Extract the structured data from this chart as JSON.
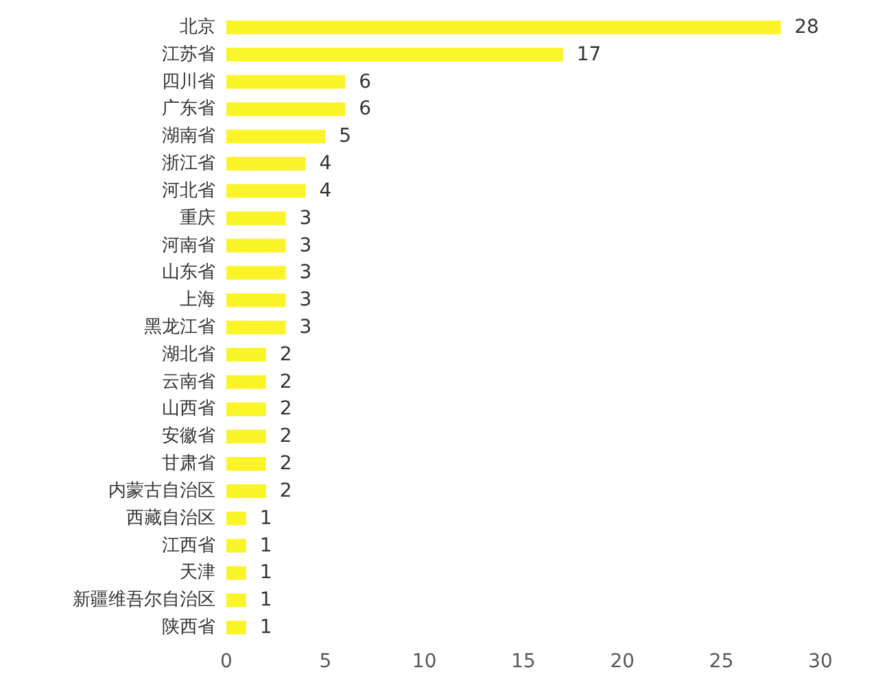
{
  "chart_data": {
    "type": "bar",
    "orientation": "horizontal",
    "categories": [
      "北京",
      "江苏省",
      "四川省",
      "广东省",
      "湖南省",
      "浙江省",
      "河北省",
      "重庆",
      "河南省",
      "山东省",
      "上海",
      "黑龙江省",
      "湖北省",
      "云南省",
      "山西省",
      "安徽省",
      "甘肃省",
      "内蒙古自治区",
      "西藏自治区",
      "江西省",
      "天津",
      "新疆维吾尔自治区",
      "陕西省"
    ],
    "values": [
      28,
      17,
      6,
      6,
      5,
      4,
      4,
      3,
      3,
      3,
      3,
      3,
      2,
      2,
      2,
      2,
      2,
      2,
      1,
      1,
      1,
      1,
      1
    ],
    "color": "#fbf429",
    "xlim": [
      0,
      30
    ],
    "xticks": [
      0,
      5,
      10,
      15,
      20,
      25,
      30
    ],
    "grid": false,
    "data_labels": true
  }
}
